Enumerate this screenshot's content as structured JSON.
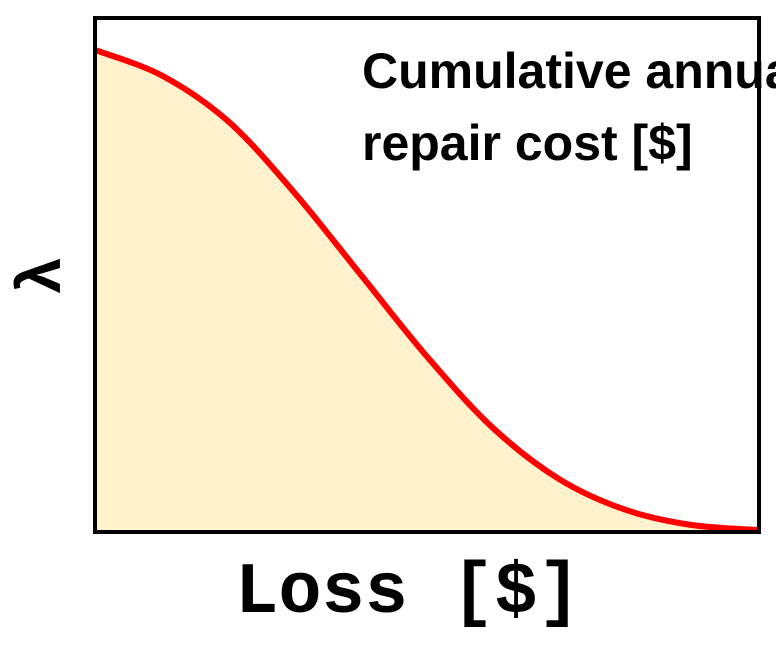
{
  "chart_data": {
    "type": "area",
    "title": "",
    "xlabel": "Loss [$]",
    "ylabel": "λ",
    "annotation": {
      "lines": [
        "Cumulative annual",
        "repair cost [$]"
      ]
    },
    "xlim": [
      0,
      1
    ],
    "ylim": [
      0,
      1
    ],
    "grid": false,
    "legend": "none",
    "x_ticks": [],
    "y_ticks": [],
    "series": [
      {
        "name": "λ curve",
        "x": [
          0,
          0.1,
          0.2,
          0.3,
          0.4,
          0.5,
          0.6,
          0.7,
          0.8,
          0.9,
          1.0
        ],
        "values": [
          0.94,
          0.89,
          0.8,
          0.66,
          0.5,
          0.34,
          0.2,
          0.1,
          0.04,
          0.01,
          0.0
        ],
        "line_color": "#ff0000",
        "fill_color": "#fff2cc"
      }
    ]
  }
}
